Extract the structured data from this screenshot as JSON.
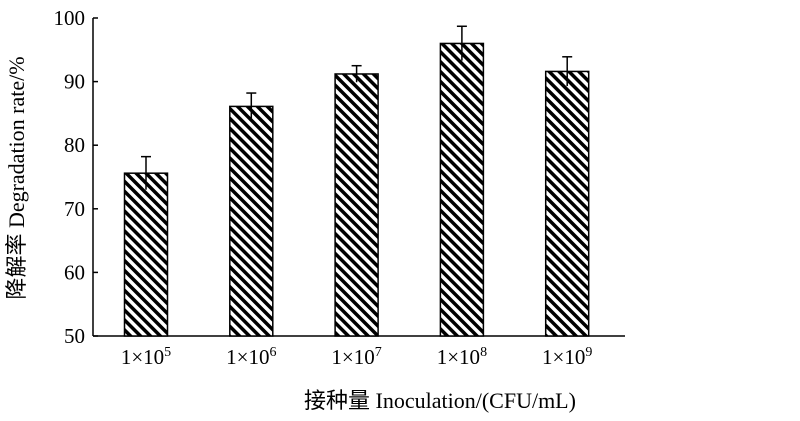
{
  "chart_data": {
    "type": "bar",
    "title": "",
    "xlabel": "接种量 Inoculation/(CFU/mL)",
    "ylabel": "降解率 Degradation rate/%",
    "ylim": [
      50,
      100
    ],
    "yticks": [
      50,
      60,
      70,
      80,
      90,
      100
    ],
    "grid": false,
    "legend": "none",
    "categories": [
      {
        "base": "1×10",
        "exp": "5"
      },
      {
        "base": "1×10",
        "exp": "6"
      },
      {
        "base": "1×10",
        "exp": "7"
      },
      {
        "base": "1×10",
        "exp": "8"
      },
      {
        "base": "1×10",
        "exp": "9"
      }
    ],
    "values": [
      75.6,
      86.1,
      91.2,
      96.0,
      91.6
    ],
    "errors": [
      2.6,
      2.1,
      1.3,
      2.7,
      2.3
    ],
    "bar_color": "#000000"
  }
}
